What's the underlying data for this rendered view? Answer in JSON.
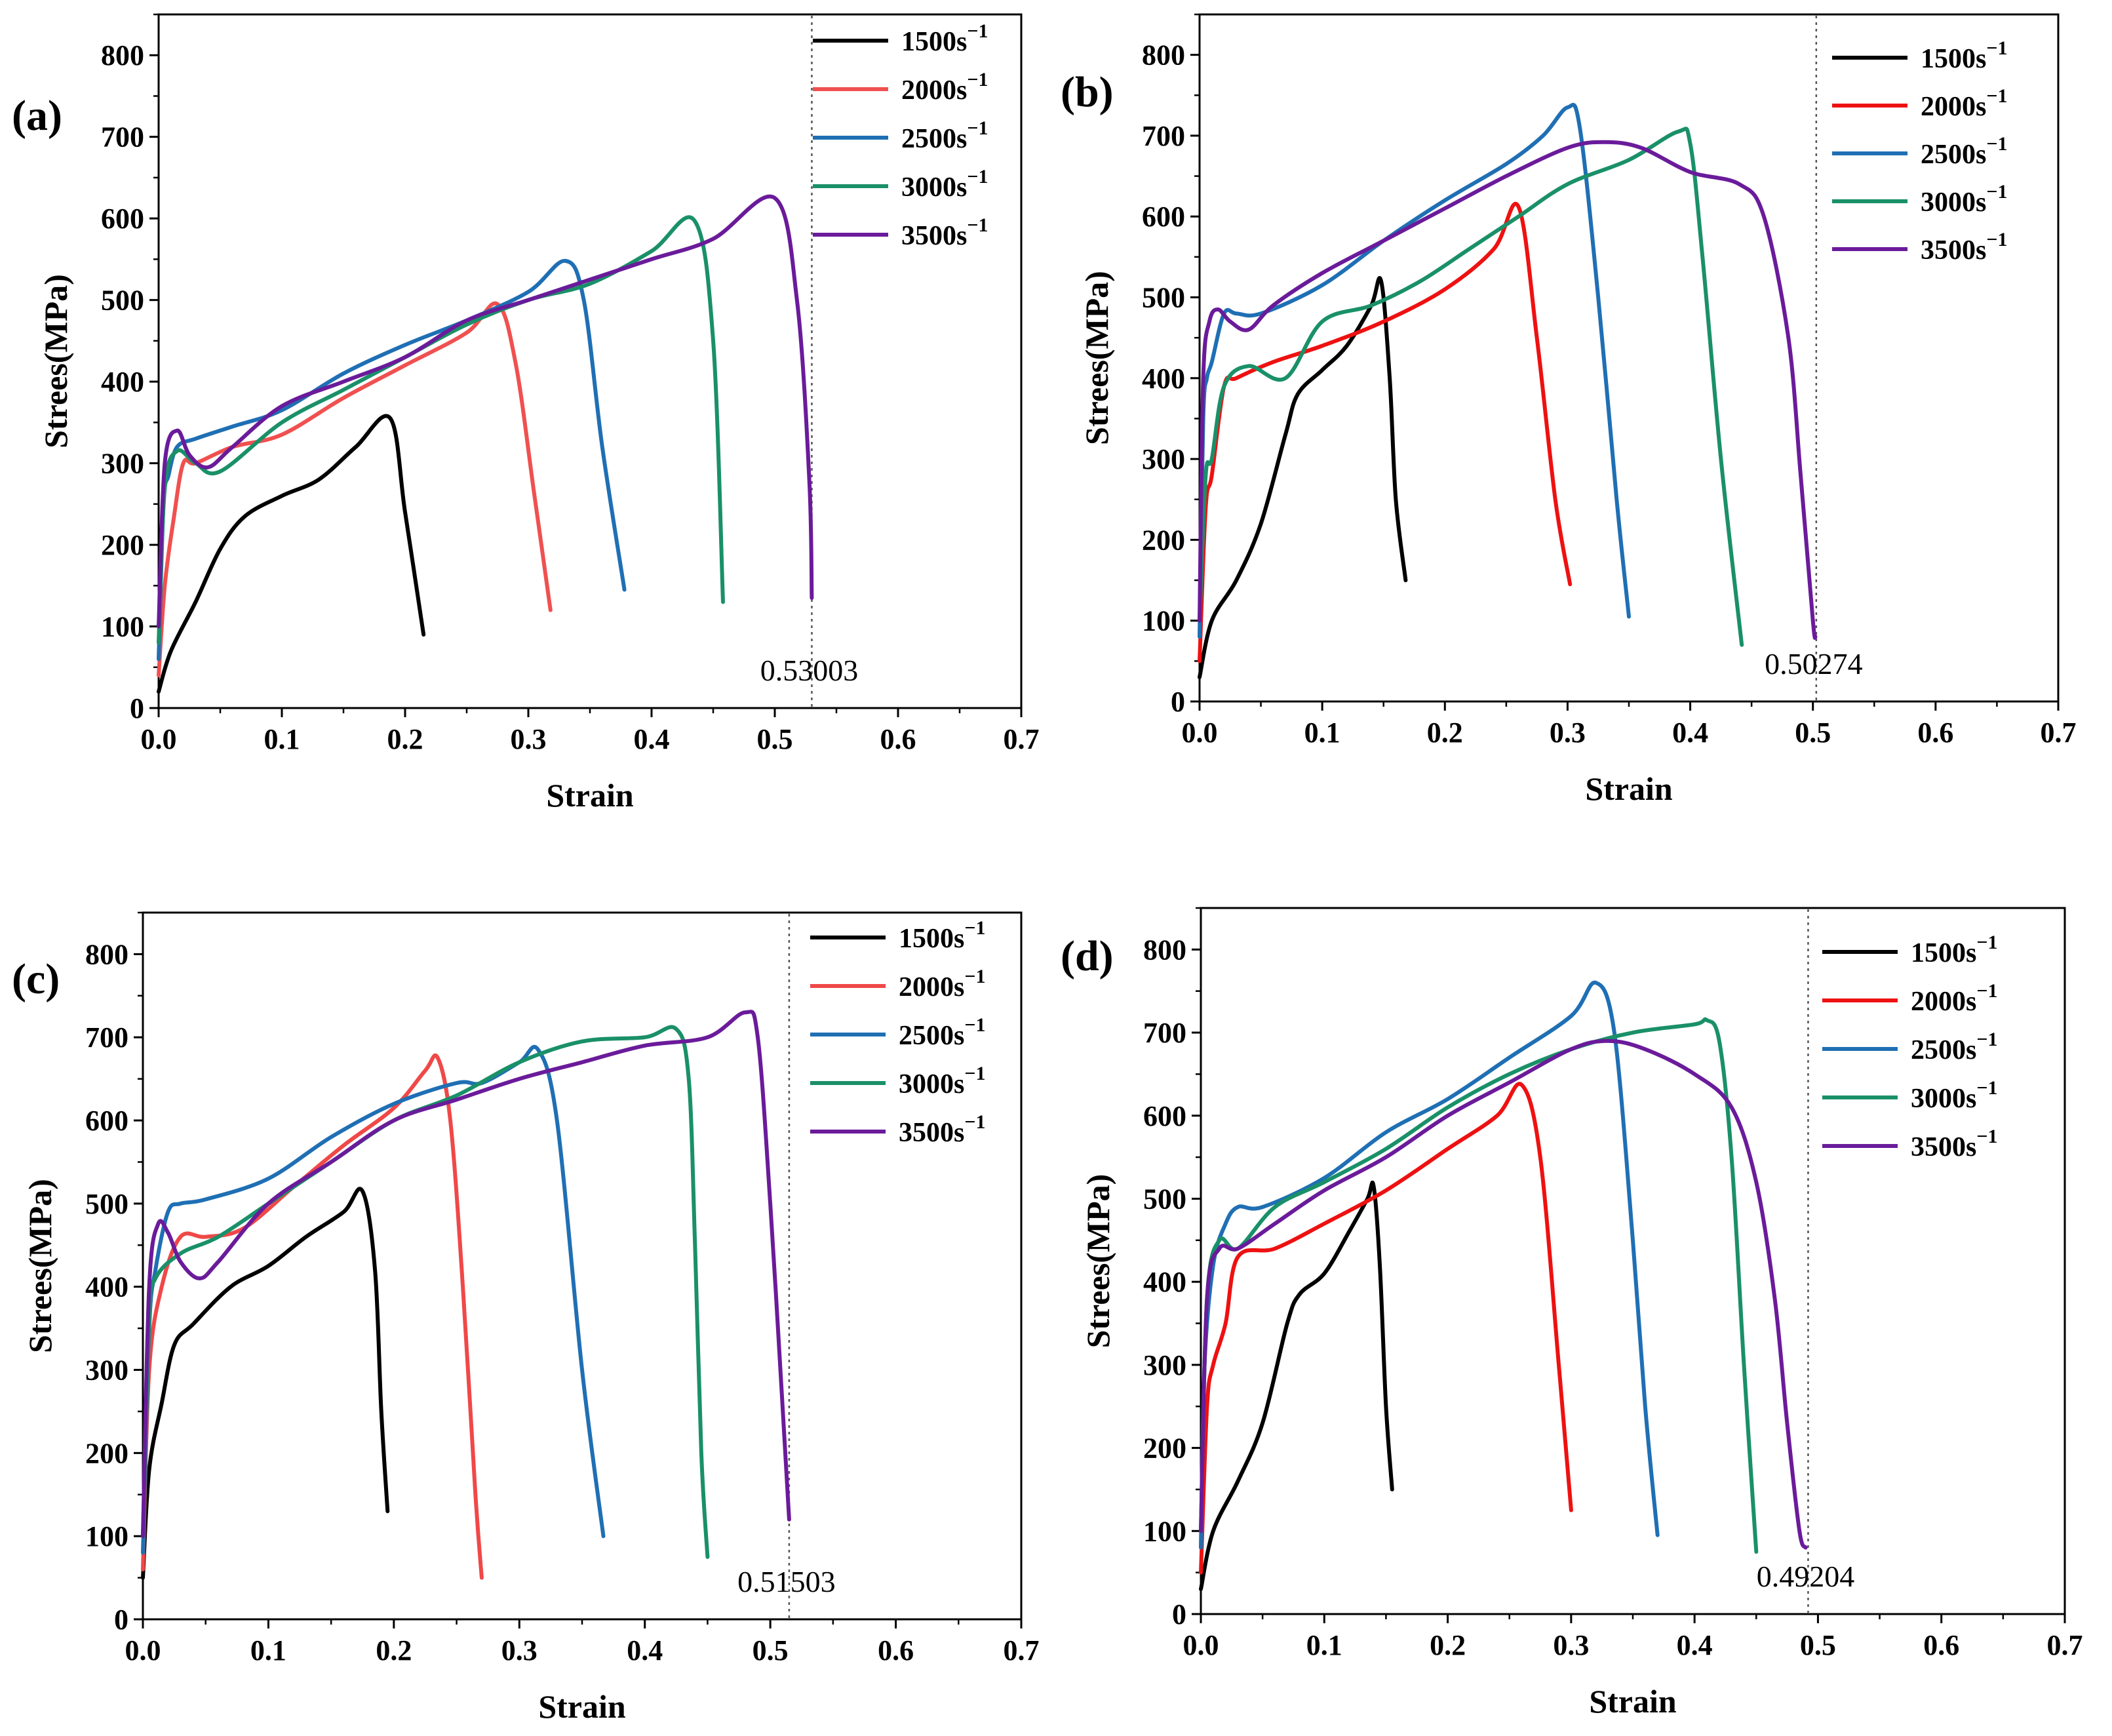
{
  "figure_title": "",
  "chart_data": [
    {
      "panel_label": "(a)",
      "type": "line",
      "xlabel": "Strain",
      "ylabel": "Strees(MPa)",
      "xlim": [
        0,
        0.7
      ],
      "ylim": [
        0,
        850
      ],
      "xticks": [
        "0.0",
        "0.1",
        "0.2",
        "0.3",
        "0.4",
        "0.5",
        "0.6",
        "0.7"
      ],
      "yticks": [
        "0",
        "100",
        "200",
        "300",
        "400",
        "500",
        "600",
        "700",
        "800"
      ],
      "annotation": {
        "text": "0.53003",
        "x": 0.53003
      },
      "series": [
        {
          "name": "1500s",
          "superscript": "−1",
          "color": "#000000",
          "x": [
            0,
            0.01,
            0.03,
            0.05,
            0.07,
            0.1,
            0.13,
            0.16,
            0.188,
            0.2,
            0.215
          ],
          "y": [
            20,
            70,
            130,
            195,
            235,
            260,
            280,
            320,
            355,
            240,
            90
          ]
        },
        {
          "name": "2000s",
          "superscript": "−1",
          "color": "#f05050",
          "x": [
            0,
            0.005,
            0.012,
            0.02,
            0.03,
            0.06,
            0.1,
            0.15,
            0.2,
            0.25,
            0.275,
            0.29,
            0.305,
            0.318
          ],
          "y": [
            40,
            150,
            230,
            300,
            300,
            320,
            335,
            380,
            420,
            460,
            495,
            420,
            260,
            120
          ]
        },
        {
          "name": "2500s",
          "superscript": "−1",
          "color": "#1f6fb4",
          "x": [
            0,
            0.004,
            0.008,
            0.015,
            0.03,
            0.06,
            0.1,
            0.15,
            0.2,
            0.25,
            0.3,
            0.33,
            0.345,
            0.36,
            0.378
          ],
          "y": [
            60,
            250,
            285,
            320,
            330,
            345,
            365,
            410,
            445,
            475,
            510,
            548,
            500,
            320,
            145
          ]
        },
        {
          "name": "3000s",
          "superscript": "−1",
          "color": "#1a9068",
          "x": [
            0,
            0.005,
            0.015,
            0.03,
            0.05,
            0.1,
            0.15,
            0.2,
            0.25,
            0.3,
            0.35,
            0.4,
            0.435,
            0.45,
            0.458
          ],
          "y": [
            80,
            270,
            315,
            300,
            290,
            350,
            390,
            430,
            470,
            500,
            520,
            560,
            597,
            450,
            130
          ]
        },
        {
          "name": "3500s",
          "superscript": "−1",
          "color": "#6a1b9a",
          "x": [
            0,
            0.005,
            0.015,
            0.025,
            0.04,
            0.06,
            0.1,
            0.15,
            0.2,
            0.25,
            0.3,
            0.35,
            0.4,
            0.45,
            0.5,
            0.518,
            0.528,
            0.53
          ],
          "y": [
            100,
            300,
            340,
            310,
            295,
            320,
            370,
            400,
            430,
            475,
            500,
            525,
            550,
            575,
            625,
            500,
            280,
            135
          ]
        }
      ]
    },
    {
      "panel_label": "(b)",
      "type": "line",
      "xlabel": "Strain",
      "ylabel": "Strees(MPa)",
      "xlim": [
        0,
        0.7
      ],
      "ylim": [
        0,
        850
      ],
      "xticks": [
        "0.0",
        "0.1",
        "0.2",
        "0.3",
        "0.4",
        "0.5",
        "0.6",
        "0.7"
      ],
      "yticks": [
        "0",
        "100",
        "200",
        "300",
        "400",
        "500",
        "600",
        "700",
        "800"
      ],
      "annotation": {
        "text": "0.50274",
        "x": 0.50274
      },
      "series": [
        {
          "name": "1500s",
          "superscript": "−1",
          "color": "#000000",
          "x": [
            0,
            0.01,
            0.03,
            0.05,
            0.07,
            0.08,
            0.1,
            0.12,
            0.14,
            0.148,
            0.155,
            0.16,
            0.168
          ],
          "y": [
            30,
            100,
            150,
            220,
            330,
            380,
            410,
            440,
            490,
            520,
            400,
            250,
            150
          ]
        },
        {
          "name": "2000s",
          "superscript": "−1",
          "color": "#ee1111",
          "x": [
            0,
            0.005,
            0.01,
            0.02,
            0.03,
            0.06,
            0.1,
            0.15,
            0.2,
            0.24,
            0.26,
            0.275,
            0.29,
            0.302
          ],
          "y": [
            50,
            240,
            280,
            390,
            400,
            420,
            440,
            470,
            510,
            560,
            612,
            450,
            250,
            145
          ]
        },
        {
          "name": "2500s",
          "superscript": "−1",
          "color": "#1f6fb4",
          "x": [
            0,
            0.003,
            0.006,
            0.01,
            0.02,
            0.03,
            0.05,
            0.1,
            0.15,
            0.2,
            0.25,
            0.28,
            0.3,
            0.31,
            0.325,
            0.34,
            0.35
          ],
          "y": [
            80,
            350,
            400,
            420,
            480,
            480,
            480,
            515,
            570,
            620,
            665,
            700,
            735,
            710,
            500,
            250,
            105
          ]
        },
        {
          "name": "3000s",
          "superscript": "−1",
          "color": "#1a9068",
          "x": [
            0,
            0.005,
            0.01,
            0.02,
            0.04,
            0.07,
            0.1,
            0.14,
            0.18,
            0.22,
            0.26,
            0.3,
            0.35,
            0.39,
            0.4,
            0.41,
            0.425,
            0.442
          ],
          "y": [
            100,
            280,
            300,
            390,
            415,
            400,
            470,
            490,
            520,
            560,
            600,
            640,
            670,
            705,
            690,
            550,
            300,
            70
          ]
        },
        {
          "name": "3500s",
          "superscript": "−1",
          "color": "#6a1b9a",
          "x": [
            0,
            0.003,
            0.008,
            0.015,
            0.025,
            0.04,
            0.06,
            0.1,
            0.15,
            0.2,
            0.25,
            0.3,
            0.33,
            0.36,
            0.4,
            0.44,
            0.46,
            0.48,
            0.49,
            0.5,
            0.502
          ],
          "y": [
            100,
            400,
            470,
            485,
            470,
            460,
            490,
            530,
            570,
            610,
            650,
            685,
            692,
            685,
            655,
            640,
            600,
            450,
            280,
            100,
            80
          ]
        }
      ]
    },
    {
      "panel_label": "(c)",
      "type": "line",
      "xlabel": "Strain",
      "ylabel": "Strees(MPa)",
      "xlim": [
        0,
        0.7
      ],
      "ylim": [
        0,
        850
      ],
      "xticks": [
        "0.0",
        "0.1",
        "0.2",
        "0.3",
        "0.4",
        "0.5",
        "0.6",
        "0.7"
      ],
      "yticks": [
        "0",
        "100",
        "200",
        "300",
        "400",
        "500",
        "600",
        "700",
        "800"
      ],
      "annotation": {
        "text": "0.51503",
        "x": 0.51503
      },
      "series": [
        {
          "name": "1500s",
          "superscript": "−1",
          "color": "#000000",
          "x": [
            0,
            0.005,
            0.015,
            0.025,
            0.04,
            0.07,
            0.1,
            0.13,
            0.16,
            0.175,
            0.185,
            0.19,
            0.195
          ],
          "y": [
            50,
            180,
            260,
            330,
            355,
            400,
            425,
            460,
            490,
            515,
            420,
            250,
            130
          ]
        },
        {
          "name": "2000s",
          "superscript": "−1",
          "color": "#f04848",
          "x": [
            0,
            0.005,
            0.015,
            0.03,
            0.05,
            0.08,
            0.12,
            0.16,
            0.2,
            0.225,
            0.235,
            0.245,
            0.255,
            0.265,
            0.27
          ],
          "y": [
            60,
            300,
            400,
            460,
            460,
            470,
            520,
            570,
            615,
            660,
            675,
            600,
            400,
            150,
            50
          ]
        },
        {
          "name": "2500s",
          "superscript": "−1",
          "color": "#1f6fb4",
          "x": [
            0,
            0.005,
            0.01,
            0.02,
            0.03,
            0.05,
            0.1,
            0.15,
            0.2,
            0.25,
            0.27,
            0.3,
            0.315,
            0.33,
            0.35,
            0.367
          ],
          "y": [
            80,
            350,
            420,
            490,
            500,
            505,
            530,
            580,
            620,
            645,
            645,
            670,
            685,
            600,
            300,
            100
          ]
        },
        {
          "name": "3000s",
          "superscript": "−1",
          "color": "#1a9068",
          "x": [
            0,
            0.005,
            0.01,
            0.03,
            0.06,
            0.1,
            0.15,
            0.2,
            0.25,
            0.3,
            0.35,
            0.4,
            0.425,
            0.435,
            0.44,
            0.445,
            0.45
          ],
          "y": [
            100,
            360,
            410,
            440,
            460,
            500,
            550,
            600,
            630,
            670,
            695,
            700,
            710,
            650,
            450,
            200,
            75
          ]
        },
        {
          "name": "3500s",
          "superscript": "−1",
          "color": "#6a1b9a",
          "x": [
            0,
            0.005,
            0.012,
            0.02,
            0.03,
            0.045,
            0.06,
            0.1,
            0.15,
            0.2,
            0.25,
            0.3,
            0.35,
            0.4,
            0.45,
            0.48,
            0.49,
            0.5,
            0.51,
            0.515
          ],
          "y": [
            100,
            400,
            475,
            465,
            430,
            410,
            430,
            500,
            550,
            600,
            625,
            650,
            670,
            690,
            700,
            730,
            700,
            500,
            250,
            120
          ]
        }
      ]
    },
    {
      "panel_label": "(d)",
      "type": "line",
      "xlabel": "Strain",
      "ylabel": "Strees(MPa)",
      "xlim": [
        0,
        0.7
      ],
      "ylim": [
        0,
        850
      ],
      "xticks": [
        "0.0",
        "0.1",
        "0.2",
        "0.3",
        "0.4",
        "0.5",
        "0.6",
        "0.7"
      ],
      "yticks": [
        "0",
        "100",
        "200",
        "300",
        "400",
        "500",
        "600",
        "700",
        "800"
      ],
      "annotation": {
        "text": "0.49204",
        "x": 0.49204
      },
      "series": [
        {
          "name": "1500s",
          "superscript": "−1",
          "color": "#000000",
          "x": [
            0,
            0.01,
            0.03,
            0.05,
            0.07,
            0.08,
            0.1,
            0.12,
            0.135,
            0.14,
            0.145,
            0.15,
            0.155
          ],
          "y": [
            30,
            100,
            160,
            230,
            350,
            385,
            410,
            460,
            500,
            515,
            420,
            250,
            150
          ]
        },
        {
          "name": "2000s",
          "superscript": "−1",
          "color": "#ee1111",
          "x": [
            0,
            0.005,
            0.01,
            0.02,
            0.03,
            0.06,
            0.1,
            0.15,
            0.2,
            0.24,
            0.26,
            0.275,
            0.29,
            0.3
          ],
          "y": [
            50,
            250,
            300,
            350,
            430,
            440,
            470,
            510,
            560,
            600,
            637,
            550,
            300,
            125
          ]
        },
        {
          "name": "2500s",
          "superscript": "−1",
          "color": "#1f6fb4",
          "x": [
            0,
            0.003,
            0.01,
            0.02,
            0.03,
            0.05,
            0.1,
            0.15,
            0.2,
            0.25,
            0.3,
            0.32,
            0.335,
            0.35,
            0.36,
            0.37
          ],
          "y": [
            80,
            300,
            420,
            470,
            490,
            490,
            525,
            580,
            620,
            670,
            720,
            760,
            700,
            450,
            250,
            95
          ]
        },
        {
          "name": "3000s",
          "superscript": "−1",
          "color": "#1a9068",
          "x": [
            0,
            0.005,
            0.015,
            0.03,
            0.06,
            0.1,
            0.15,
            0.2,
            0.25,
            0.3,
            0.35,
            0.4,
            0.41,
            0.42,
            0.43,
            0.44,
            0.45
          ],
          "y": [
            100,
            380,
            450,
            440,
            490,
            520,
            560,
            610,
            650,
            680,
            700,
            710,
            715,
            690,
            550,
            300,
            75
          ]
        },
        {
          "name": "3500s",
          "superscript": "−1",
          "color": "#6a1b9a",
          "x": [
            0,
            0.005,
            0.015,
            0.03,
            0.06,
            0.1,
            0.15,
            0.2,
            0.25,
            0.3,
            0.33,
            0.36,
            0.4,
            0.43,
            0.45,
            0.465,
            0.475,
            0.485,
            0.49
          ],
          "y": [
            100,
            380,
            440,
            440,
            470,
            510,
            550,
            600,
            640,
            680,
            690,
            680,
            650,
            610,
            520,
            380,
            230,
            100,
            80
          ]
        }
      ]
    }
  ]
}
